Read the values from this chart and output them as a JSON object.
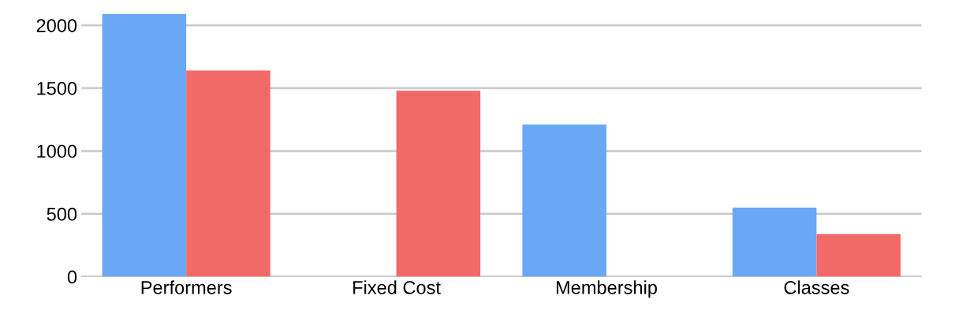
{
  "chart_data": {
    "type": "bar",
    "categories": [
      "Performers",
      "Fixed Cost",
      "Membership",
      "Classes"
    ],
    "series": [
      {
        "color": "#6aa8f5",
        "values": [
          2090,
          null,
          1210,
          550
        ]
      },
      {
        "color": "#f26a68",
        "values": [
          1640,
          1480,
          null,
          340
        ]
      }
    ],
    "ylim": [
      0,
      2100
    ],
    "yticks": [
      0,
      500,
      1000,
      1500,
      2000
    ],
    "grid": "y"
  }
}
